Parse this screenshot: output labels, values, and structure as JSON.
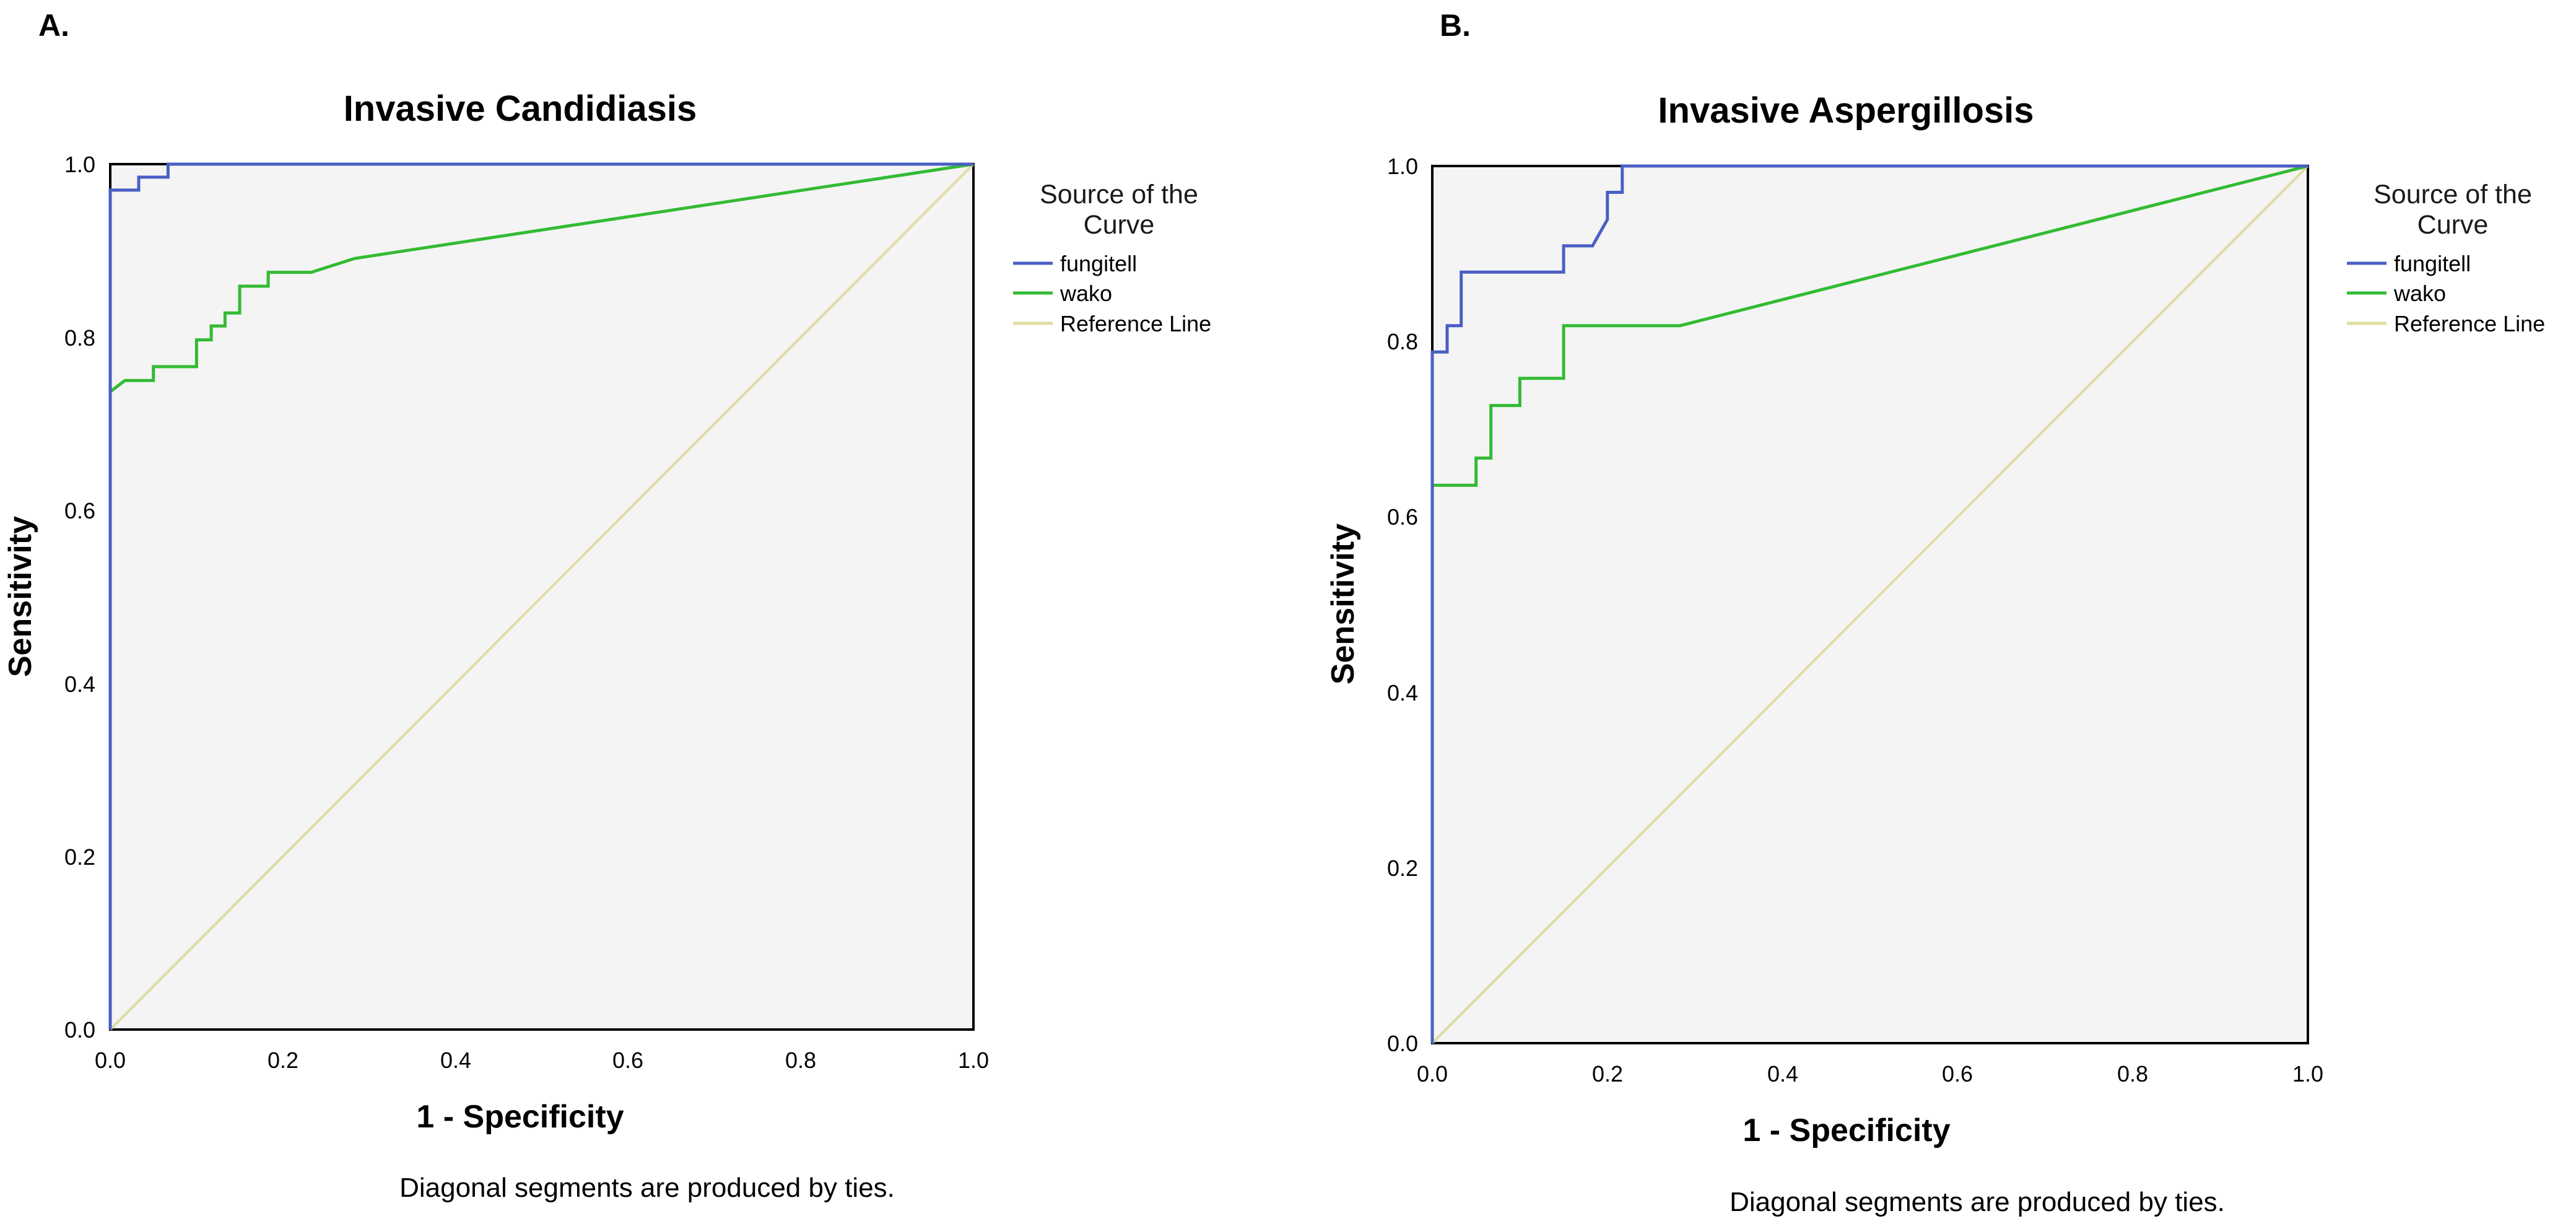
{
  "panels": [
    {
      "panel_label": "A.",
      "legend_title_line1": "Source of the",
      "legend_title_line2": "Curve",
      "footnote": "Diagonal segments are produced by ties."
    },
    {
      "panel_label": "B.",
      "legend_title_line1": "Source of the",
      "legend_title_line2": "Curve",
      "footnote": "Diagonal segments are produced by ties."
    }
  ],
  "chart_data": [
    {
      "type": "line",
      "title": "Invasive Candidiasis",
      "xlabel": "1 - Specificity",
      "ylabel": "Sensitivity",
      "xlim": [
        0,
        1
      ],
      "ylim": [
        0,
        1
      ],
      "xticks": [
        "0.0",
        "0.2",
        "0.4",
        "0.6",
        "0.8",
        "1.0"
      ],
      "yticks": [
        "0.0",
        "0.2",
        "0.4",
        "0.6",
        "0.8",
        "1.0"
      ],
      "legend_position": "right",
      "series": [
        {
          "name": "fungitell",
          "color": "#4a5fc4",
          "x": [
            0,
            0,
            0.033,
            0.033,
            0.067,
            0.067,
            1.0
          ],
          "y": [
            0,
            0.97,
            0.97,
            0.985,
            0.985,
            1.0,
            1.0
          ]
        },
        {
          "name": "wako",
          "color": "#33bb33",
          "x": [
            0,
            0,
            0.017,
            0.05,
            0.05,
            0.1,
            0.1,
            0.117,
            0.117,
            0.133,
            0.133,
            0.15,
            0.15,
            0.183,
            0.183,
            0.233,
            0.283,
            1.0
          ],
          "y": [
            0,
            0.737,
            0.75,
            0.75,
            0.766,
            0.766,
            0.797,
            0.797,
            0.813,
            0.813,
            0.828,
            0.828,
            0.859,
            0.859,
            0.875,
            0.875,
            0.891,
            1.0
          ]
        },
        {
          "name": "Reference Line",
          "color": "#e0dba0",
          "x": [
            0,
            1
          ],
          "y": [
            0,
            1
          ]
        }
      ]
    },
    {
      "type": "line",
      "title": "Invasive Aspergillosis",
      "xlabel": "1 - Specificity",
      "ylabel": "Sensitivity",
      "xlim": [
        0,
        1
      ],
      "ylim": [
        0,
        1
      ],
      "xticks": [
        "0.0",
        "0.2",
        "0.4",
        "0.6",
        "0.8",
        "1.0"
      ],
      "yticks": [
        "0.0",
        "0.2",
        "0.4",
        "0.6",
        "0.8",
        "1.0"
      ],
      "legend_position": "right",
      "series": [
        {
          "name": "fungitell",
          "color": "#4a5fc4",
          "x": [
            0,
            0,
            0.017,
            0.017,
            0.033,
            0.033,
            0.15,
            0.15,
            0.183,
            0.2,
            0.2,
            0.217,
            0.217,
            1.0
          ],
          "y": [
            0,
            0.788,
            0.788,
            0.818,
            0.818,
            0.879,
            0.879,
            0.909,
            0.909,
            0.939,
            0.97,
            0.97,
            1.0,
            1.0
          ]
        },
        {
          "name": "wako",
          "color": "#33bb33",
          "x": [
            0,
            0,
            0.05,
            0.05,
            0.067,
            0.067,
            0.1,
            0.1,
            0.15,
            0.15,
            0.283,
            1.0
          ],
          "y": [
            0,
            0.636,
            0.636,
            0.667,
            0.667,
            0.727,
            0.727,
            0.758,
            0.758,
            0.818,
            0.818,
            1.0
          ]
        },
        {
          "name": "Reference Line",
          "color": "#e0dba0",
          "x": [
            0,
            1
          ],
          "y": [
            0,
            1
          ]
        }
      ]
    }
  ]
}
